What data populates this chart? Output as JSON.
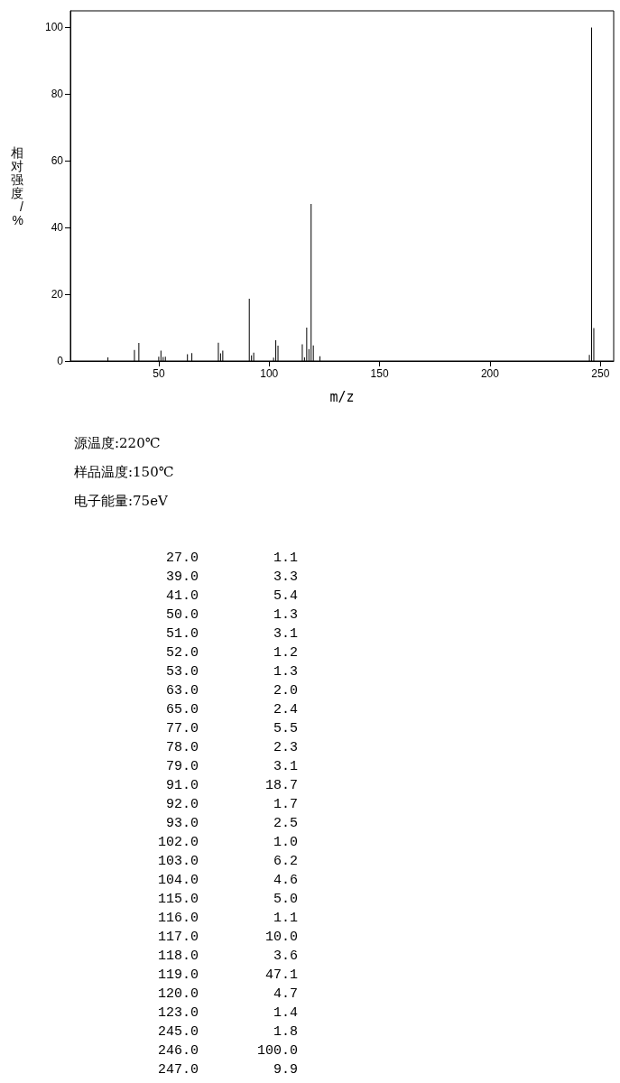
{
  "chart_data": [
    {
      "type": "bar",
      "xlabel": "m/z",
      "ylabel": "相对强度/%",
      "x": [
        27,
        39,
        41,
        50,
        51,
        52,
        53,
        63,
        65,
        77,
        78,
        79,
        91,
        92,
        93,
        102,
        103,
        104,
        115,
        116,
        117,
        118,
        119,
        120,
        123,
        245,
        246,
        247
      ],
      "values": [
        1.1,
        3.3,
        5.4,
        1.3,
        3.1,
        1.2,
        1.3,
        2.0,
        2.4,
        5.5,
        2.3,
        3.1,
        18.7,
        1.7,
        2.5,
        1.0,
        6.2,
        4.6,
        5.0,
        1.1,
        10.0,
        3.6,
        47.1,
        4.7,
        1.4,
        1.8,
        100.0,
        9.9
      ],
      "color": "#000000",
      "xlim": [
        10,
        256
      ],
      "xticks": [
        50,
        100,
        150,
        200,
        250
      ],
      "ylim": [
        0,
        105
      ],
      "yticks": [
        0,
        20,
        40,
        60,
        80,
        100
      ],
      "grid": false,
      "annotations": [
        "源温度:220℃",
        "样品温度:150℃",
        "电子能量:75eV"
      ]
    },
    {
      "type": "other",
      "categories": [
        "27.0",
        "39.0",
        "41.0",
        "50.0",
        "51.0",
        "52.0",
        "53.0",
        "63.0",
        "65.0",
        "77.0",
        "78.0",
        "79.0",
        "91.0",
        "92.0",
        "93.0",
        "102.0",
        "103.0",
        "104.0",
        "115.0",
        "116.0",
        "117.0",
        "118.0",
        "119.0",
        "120.0",
        "123.0",
        "245.0",
        "246.0",
        "247.0"
      ],
      "values": [
        1.1,
        3.3,
        5.4,
        1.3,
        3.1,
        1.2,
        1.3,
        2.0,
        2.4,
        5.5,
        2.3,
        3.1,
        18.7,
        1.7,
        2.5,
        1.0,
        6.2,
        4.6,
        5.0,
        1.1,
        10.0,
        3.6,
        47.1,
        4.7,
        1.4,
        1.8,
        100.0,
        9.9
      ],
      "value_labels": [
        "1.1",
        "3.3",
        "5.4",
        "1.3",
        "3.1",
        "1.2",
        "1.3",
        "2.0",
        "2.4",
        "5.5",
        "2.3",
        "3.1",
        "18.7",
        "1.7",
        "2.5",
        "1.0",
        "6.2",
        "4.6",
        "5.0",
        "1.1",
        "10.0",
        "3.6",
        "47.1",
        "4.7",
        "1.4",
        "1.8",
        "100.0",
        "9.9"
      ]
    }
  ]
}
